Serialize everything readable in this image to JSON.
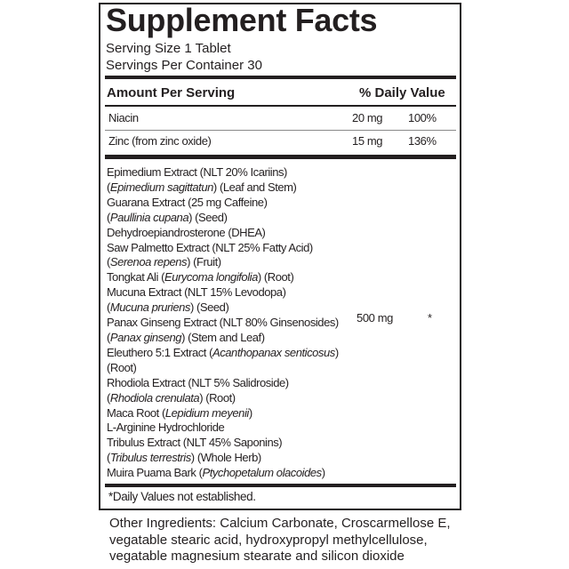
{
  "title": "Supplement Facts",
  "serving_size": "Serving Size 1 Tablet",
  "servings_per_container": "Servings Per Container 30",
  "header": {
    "amount": "Amount Per Serving",
    "daily_value": "% Daily Value"
  },
  "nutrients": [
    {
      "name": "Niacin",
      "amount": "20 mg",
      "dv": "100%"
    },
    {
      "name": "Zinc (from zinc oxide)",
      "amount": "15 mg",
      "dv": "136%"
    }
  ],
  "blend": {
    "amount": "500 mg",
    "dv": "*",
    "lines": [
      [
        {
          "t": "Epimedium Extract (NLT 20% Icariins)"
        }
      ],
      [
        {
          "t": "("
        },
        {
          "t": "Epimedium sagittatun",
          "i": true
        },
        {
          "t": ") (Leaf and Stem)"
        }
      ],
      [
        {
          "t": "Guarana Extract (25 mg Caffeine)"
        }
      ],
      [
        {
          "t": "("
        },
        {
          "t": "Paullinia cupana",
          "i": true
        },
        {
          "t": ")  (Seed)"
        }
      ],
      [
        {
          "t": "Dehydroepiandrosterone (DHEA)"
        }
      ],
      [
        {
          "t": "Saw Palmetto Extract (NLT 25% Fatty Acid)"
        }
      ],
      [
        {
          "t": "("
        },
        {
          "t": "Serenoa repens",
          "i": true
        },
        {
          "t": ") (Fruit)"
        }
      ],
      [
        {
          "t": "Tongkat Ali ("
        },
        {
          "t": "Eurycoma longifolia",
          "i": true
        },
        {
          "t": ") (Root)"
        }
      ],
      [
        {
          "t": "Mucuna Extract (NLT 15% Levodopa)"
        }
      ],
      [
        {
          "t": "("
        },
        {
          "t": "Mucuna pruriens",
          "i": true
        },
        {
          "t": ") (Seed)"
        }
      ],
      [
        {
          "t": "Panax Ginseng Extract (NLT 80% Ginsenosides)"
        }
      ],
      [
        {
          "t": "("
        },
        {
          "t": "Panax ginseng",
          "i": true
        },
        {
          "t": ") (Stem and Leaf)"
        }
      ],
      [
        {
          "t": "Eleuthero 5:1 Extract ("
        },
        {
          "t": "Acanthopanax senticosus",
          "i": true
        },
        {
          "t": ")"
        }
      ],
      [
        {
          "t": "(Root)"
        }
      ],
      [
        {
          "t": "Rhodiola Extract (NLT 5% Salidroside)"
        }
      ],
      [
        {
          "t": "("
        },
        {
          "t": "Rhodiola crenulata",
          "i": true
        },
        {
          "t": ") (Root)"
        }
      ],
      [
        {
          "t": "Maca Root ("
        },
        {
          "t": "Lepidium meyenii",
          "i": true
        },
        {
          "t": ")"
        }
      ],
      [
        {
          "t": "L-Arginine Hydrochloride"
        }
      ],
      [
        {
          "t": "Tribulus Extract (NLT 45% Saponins)"
        }
      ],
      [
        {
          "t": "("
        },
        {
          "t": "Tribulus terrestris",
          "i": true
        },
        {
          "t": ") (Whole Herb)"
        }
      ],
      [
        {
          "t": "Muira Puama Bark ("
        },
        {
          "t": "Ptychopetalum olacoides",
          "i": true
        },
        {
          "t": ")"
        }
      ]
    ]
  },
  "footnote": "*Daily Values not established.",
  "other_ingredients": [
    "Other Ingredients: Calcium Carbonate, Croscarmellose E,",
    "vegatable stearic acid, hydroxypropyl methylcellulose,",
    "vegatable magnesium stearate and silicon dioxide"
  ]
}
